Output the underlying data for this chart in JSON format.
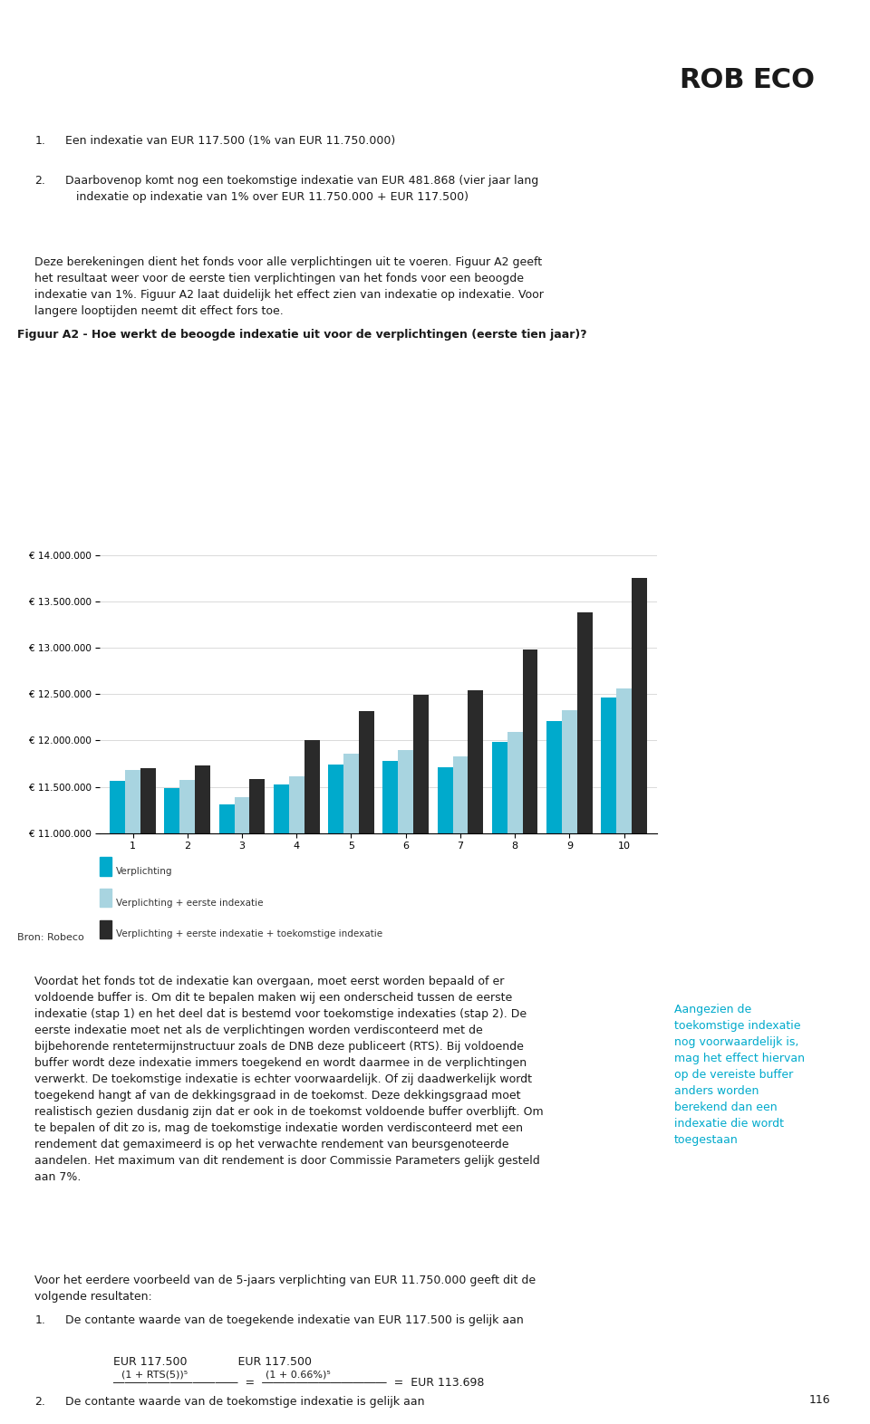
{
  "title": "Figuur A2 - Hoe werkt de beoogde indexatie uit voor de verplichtingen (eerste tien jaar)?",
  "categories": [
    1,
    2,
    3,
    4,
    5,
    6,
    7,
    8,
    9,
    10
  ],
  "series": {
    "Verplichting": [
      11560000,
      11490000,
      11310000,
      11520000,
      11740000,
      11780000,
      11710000,
      11980000,
      12210000,
      12460000
    ],
    "Verplichting + eerste indexatie": [
      11680000,
      11570000,
      11390000,
      11610000,
      11860000,
      11900000,
      11830000,
      12090000,
      12330000,
      12560000
    ],
    "Verplichting + eerste indexatie + toekomstige indexatie": [
      11700000,
      11730000,
      11580000,
      12000000,
      12320000,
      12490000,
      12540000,
      12980000,
      13380000,
      13760000
    ]
  },
  "colors": {
    "Verplichting": "#00AACC",
    "Verplichting + eerste indexatie": "#A8D4E0",
    "Verplichting + eerste indexatie + toekomstige indexatie": "#2A2A2A"
  },
  "ylim": [
    11000000,
    14000000
  ],
  "yticks": [
    11000000,
    11500000,
    12000000,
    12500000,
    13000000,
    13500000,
    14000000
  ],
  "legend_labels": [
    "Verplichting",
    "Verplichting + eerste indexatie",
    "Verplichting + eerste indexatie + toekomstige indexatie"
  ],
  "page_number": "116",
  "text_blocks": {
    "header_line1": "1. Een indexatie van EUR 117.500 (1% van EUR 11.750.000)",
    "header_line2": "2. Daarbovenop komt nog een toekomstige indexatie van EUR 481.868 (vier jaar lang\n   indexatie op indexatie van 1% over EUR 11.750.000 + EUR 117.500)",
    "para1": "Deze berekeningen dient het fonds voor alle verplichtingen uit te voeren. Figuur A2 geeft\nhet resultaat weer voor de eerste tien verplichtingen van het fonds voor een beoogde\nindexatie van 1%. Figuur A2 laat duidelijk het effect zien van indexatie op indexatie. Voor\nlangere looptijden neemt dit effect fors toe.",
    "source": "Bron: Robeco",
    "para2": "Voordat het fonds tot de indexatie kan overgaan, moet eerst worden bepaald of er\nvoldoende buffer is. Om dit te bepalen maken wij een onderscheid tussen de eerste\nindexatie (stap 1) en het deel dat is bestemd voor toekomstige indexaties (stap 2). De\neerste indexatie moet net als de verplichtingen worden verdisconteerd met de\nbijbehorende rentetermijnstructuur zoals de DNB deze publiceert (RTS). Bij voldoende\nbuffer wordt deze indexatie immers toegekend en wordt daarmee in de verplichtingen\nverwerkt. De toekomstige indexatie is echter voorwaardelijk. Of zij daadwerkelijk wordt\ntoegeked hangt af van de dekkingsgraad in de toekomst. Deze dekkingsgraad moet\nrealistisch gezien dusdanig zijn dat er ook in de toekomst voldoende buffer overblijft. Om\nte bepalen of dit zo is, mag de toekomstige indexatie worden verdisconteerd met een\nrendement dat gemaximeerd is op het verwachte rendement van beursgenoteerde\naandelen. Het maximum van dit rendement is door Commissie Parameters gelijk gesteld\naan 7%.",
    "para3": "Voor het eerdere voorbeeld van de 5-jaars verplichting van EUR 11.750.000 geeft dit de\nvolgende resultaten:",
    "formula_text": "De contante waarde van de toegekende indexatie van EUR 117.500 is gelijk aan",
    "formula_label": "1.",
    "formula": "EUR 117.500 / (1 + RTS(5))^5 = EUR 117.500 / (1 + 0.66%)^5 = EUR 113.698",
    "formula2_label": "2.",
    "formula2_text": "De contante waarde van de toekomstige indexatie is gelijk aan",
    "sidebar": "Aangezien de toekomstige indexatie nog voorwaardelijk is, mag het effect hiervan op de vereiste buffer anders worden berekend dan een indexatie die wordt toegekend"
  },
  "robeco_color": "#00AACC",
  "title_underline_color": "#00AACC",
  "top_border_color": "#00AACC",
  "bottom_border_color": "#00AACC"
}
